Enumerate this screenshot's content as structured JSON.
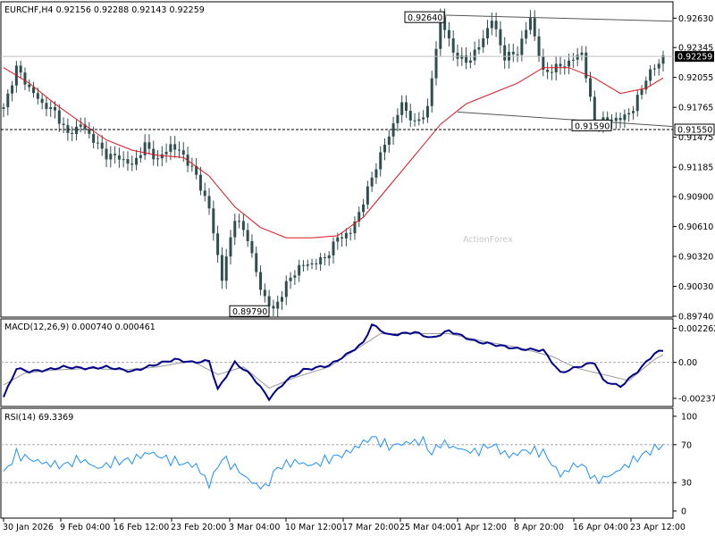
{
  "chart_data": [
    {
      "type": "candlestick",
      "title": "EURCHF,H4",
      "ohlc_header": "0.92156 0.92288 0.92143 0.92259",
      "ylim": [
        0.8974,
        0.9278
      ],
      "y_ticks": [
        "0.92630",
        "0.92345",
        "0.92055",
        "0.91765",
        "0.91475",
        "0.91185",
        "0.90900",
        "0.90610",
        "0.90320",
        "0.90030",
        "0.89740"
      ],
      "x_ticks": [
        "30 Jan 2026",
        "9 Feb 04:00",
        "16 Feb 12:00",
        "23 Feb 20:00",
        "3 Mar 04:00",
        "10 Mar 12:00",
        "17 Mar 20:00",
        "25 Mar 04:00",
        "1 Apr 12:00",
        "8 Apr 20:00",
        "16 Apr 04:00",
        "23 Apr 12:00"
      ],
      "current_price": "0.92259",
      "support_level": "0.91550",
      "annotations": [
        {
          "label": "0.92640",
          "at": "25 Mar 04:00"
        },
        {
          "label": "0.89790",
          "at": "3 Mar 04:00"
        },
        {
          "label": "0.91590",
          "at": "16 Apr 04:00"
        }
      ],
      "watermark": "ActionForex",
      "price_path": [
        [
          0,
          0.9175
        ],
        [
          3,
          0.9215
        ],
        [
          6,
          0.9195
        ],
        [
          9,
          0.918
        ],
        [
          12,
          0.9172
        ],
        [
          15,
          0.915
        ],
        [
          18,
          0.916
        ],
        [
          21,
          0.9145
        ],
        [
          24,
          0.913
        ],
        [
          27,
          0.9128
        ],
        [
          30,
          0.912
        ],
        [
          33,
          0.914
        ],
        [
          36,
          0.9125
        ],
        [
          39,
          0.914
        ],
        [
          42,
          0.913
        ],
        [
          45,
          0.911
        ],
        [
          48,
          0.9078
        ],
        [
          51,
          0.901
        ],
        [
          54,
          0.907
        ],
        [
          57,
          0.905
        ],
        [
          60,
          0.9
        ],
        [
          63,
          0.8979
        ],
        [
          66,
          0.9005
        ],
        [
          69,
          0.9022
        ],
        [
          72,
          0.9025
        ],
        [
          75,
          0.903
        ],
        [
          78,
          0.905
        ],
        [
          81,
          0.9055
        ],
        [
          84,
          0.9085
        ],
        [
          87,
          0.912
        ],
        [
          90,
          0.915
        ],
        [
          93,
          0.918
        ],
        [
          96,
          0.916
        ],
        [
          99,
          0.9175
        ],
        [
          102,
          0.9264
        ],
        [
          105,
          0.923
        ],
        [
          108,
          0.922
        ],
        [
          111,
          0.9235
        ],
        [
          114,
          0.9262
        ],
        [
          117,
          0.9225
        ],
        [
          120,
          0.923
        ],
        [
          123,
          0.9263
        ],
        [
          126,
          0.921
        ],
        [
          129,
          0.9215
        ],
        [
          132,
          0.922
        ],
        [
          135,
          0.923
        ],
        [
          138,
          0.916
        ],
        [
          141,
          0.9165
        ],
        [
          144,
          0.9165
        ],
        [
          147,
          0.9175
        ],
        [
          150,
          0.9205
        ],
        [
          153,
          0.922
        ],
        [
          154,
          0.9226
        ]
      ],
      "ma_path": [
        [
          0,
          0.9215
        ],
        [
          6,
          0.92
        ],
        [
          12,
          0.918
        ],
        [
          18,
          0.9162
        ],
        [
          24,
          0.9145
        ],
        [
          30,
          0.9135
        ],
        [
          36,
          0.913
        ],
        [
          42,
          0.9128
        ],
        [
          48,
          0.911
        ],
        [
          54,
          0.908
        ],
        [
          60,
          0.906
        ],
        [
          66,
          0.905
        ],
        [
          72,
          0.905
        ],
        [
          78,
          0.9052
        ],
        [
          84,
          0.907
        ],
        [
          90,
          0.91
        ],
        [
          96,
          0.913
        ],
        [
          102,
          0.916
        ],
        [
          108,
          0.918
        ],
        [
          114,
          0.919
        ],
        [
          120,
          0.92
        ],
        [
          126,
          0.9215
        ],
        [
          132,
          0.9215
        ],
        [
          138,
          0.9205
        ],
        [
          144,
          0.919
        ],
        [
          150,
          0.9195
        ],
        [
          154,
          0.9205
        ]
      ],
      "channel_upper": [
        [
          102,
          0.9266
        ],
        [
          154,
          0.926
        ]
      ],
      "channel_lower": [
        [
          106,
          0.9172
        ],
        [
          154,
          0.9158
        ]
      ]
    },
    {
      "type": "line",
      "title": "MACD(12,26,9) 0.000740 0.000461",
      "ylim": [
        -0.0028,
        0.0027
      ],
      "y_ticks": [
        "0.002262",
        "0.00",
        "-0.002379"
      ],
      "macd_path": [
        [
          0,
          -0.0023
        ],
        [
          3,
          -0.0004
        ],
        [
          6,
          -0.0006
        ],
        [
          10,
          -0.0005
        ],
        [
          14,
          -0.0003
        ],
        [
          20,
          -0.0004
        ],
        [
          24,
          -0.0003
        ],
        [
          30,
          -0.0006
        ],
        [
          36,
          -0.0001
        ],
        [
          40,
          0.0002
        ],
        [
          44,
          0.0
        ],
        [
          48,
          0.0001
        ],
        [
          50,
          -0.0018
        ],
        [
          54,
          0.0
        ],
        [
          58,
          -0.0009
        ],
        [
          62,
          -0.0024
        ],
        [
          66,
          -0.0012
        ],
        [
          70,
          -0.0005
        ],
        [
          76,
          -0.0002
        ],
        [
          80,
          0.0005
        ],
        [
          84,
          0.0013
        ],
        [
          86,
          0.0025
        ],
        [
          90,
          0.0018
        ],
        [
          96,
          0.002
        ],
        [
          100,
          0.0016
        ],
        [
          104,
          0.0021
        ],
        [
          110,
          0.0014
        ],
        [
          116,
          0.0011
        ],
        [
          120,
          0.0009
        ],
        [
          126,
          0.0008
        ],
        [
          130,
          -0.0007
        ],
        [
          134,
          -0.0003
        ],
        [
          138,
          0.0
        ],
        [
          140,
          -0.0012
        ],
        [
          144,
          -0.0016
        ],
        [
          148,
          -0.0006
        ],
        [
          152,
          0.0006
        ],
        [
          154,
          0.0008
        ]
      ],
      "signal_path": [
        [
          0,
          -0.0015
        ],
        [
          5,
          -0.0007
        ],
        [
          12,
          -0.0005
        ],
        [
          20,
          -0.0004
        ],
        [
          28,
          -0.0005
        ],
        [
          36,
          -0.0003
        ],
        [
          44,
          0.0001
        ],
        [
          50,
          -0.0008
        ],
        [
          56,
          -0.0003
        ],
        [
          62,
          -0.0017
        ],
        [
          68,
          -0.001
        ],
        [
          76,
          -0.0003
        ],
        [
          82,
          0.0008
        ],
        [
          88,
          0.0019
        ],
        [
          96,
          0.0019
        ],
        [
          104,
          0.0019
        ],
        [
          112,
          0.0014
        ],
        [
          120,
          0.001
        ],
        [
          128,
          0.0004
        ],
        [
          134,
          -0.0004
        ],
        [
          140,
          -0.0008
        ],
        [
          146,
          -0.0012
        ],
        [
          152,
          0.0002
        ],
        [
          154,
          0.0005
        ]
      ]
    },
    {
      "type": "line",
      "title": "RSI(14) 69.3369",
      "ylim": [
        0,
        100
      ],
      "y_ticks": [
        "100",
        "70",
        "30",
        "0"
      ],
      "reference_lines": [
        70,
        30
      ],
      "rsi_path": [
        [
          0,
          40
        ],
        [
          3,
          60
        ],
        [
          6,
          55
        ],
        [
          10,
          50
        ],
        [
          14,
          48
        ],
        [
          18,
          55
        ],
        [
          22,
          45
        ],
        [
          26,
          52
        ],
        [
          30,
          54
        ],
        [
          34,
          62
        ],
        [
          38,
          55
        ],
        [
          42,
          50
        ],
        [
          45,
          48
        ],
        [
          48,
          28
        ],
        [
          51,
          56
        ],
        [
          54,
          46
        ],
        [
          58,
          30
        ],
        [
          61,
          24
        ],
        [
          64,
          46
        ],
        [
          68,
          52
        ],
        [
          72,
          48
        ],
        [
          76,
          55
        ],
        [
          80,
          61
        ],
        [
          84,
          72
        ],
        [
          86,
          78
        ],
        [
          90,
          68
        ],
        [
          94,
          72
        ],
        [
          98,
          74
        ],
        [
          100,
          60
        ],
        [
          102,
          72
        ],
        [
          106,
          66
        ],
        [
          110,
          62
        ],
        [
          114,
          70
        ],
        [
          118,
          58
        ],
        [
          122,
          64
        ],
        [
          126,
          62
        ],
        [
          130,
          38
        ],
        [
          134,
          50
        ],
        [
          136,
          45
        ],
        [
          138,
          32
        ],
        [
          141,
          36
        ],
        [
          144,
          44
        ],
        [
          148,
          56
        ],
        [
          152,
          66
        ],
        [
          154,
          69
        ]
      ]
    }
  ]
}
